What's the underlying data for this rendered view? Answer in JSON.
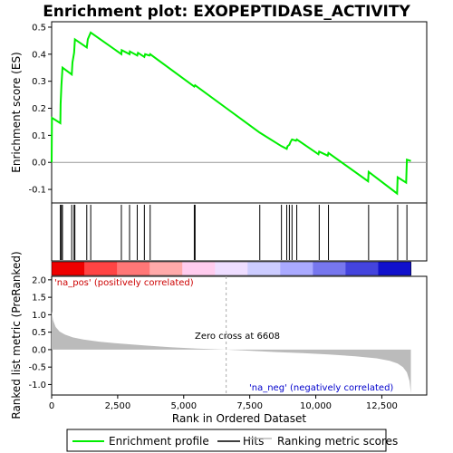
{
  "chart_data": {
    "type": "line",
    "title": "Enrichment plot: EXOPEPTIDASE_ACTIVITY",
    "xlabel": "Rank in Ordered Dataset",
    "ylabel_top": "Enrichment score (ES)",
    "ylabel_bottom": "Ranked list metric (PreRanked)",
    "x_range": [
      0,
      14200
    ],
    "x_ticks": [
      0,
      2500,
      5000,
      7500,
      10000,
      12500
    ],
    "x_tick_labels": [
      "0",
      "2,500",
      "5,000",
      "7,500",
      "10,000",
      "12,500"
    ],
    "es_ylim": [
      -0.15,
      0.52
    ],
    "es_ticks": [
      -0.1,
      0.0,
      0.1,
      0.2,
      0.3,
      0.4,
      0.5
    ],
    "es_tick_labels": [
      "-0.1",
      "0.0",
      "0.1",
      "0.2",
      "0.3",
      "0.4",
      "0.5"
    ],
    "metric_ylim": [
      -1.3,
      2.1
    ],
    "metric_ticks": [
      -1.0,
      -0.5,
      0.0,
      0.5,
      1.0,
      1.5,
      2.0
    ],
    "metric_tick_labels": [
      "-1.0",
      "-0.5",
      "0.0",
      "0.5",
      "1.0",
      "1.5",
      "2.0"
    ],
    "series": [
      {
        "name": "Enrichment profile",
        "color": "#00ee00",
        "points": [
          [
            0,
            0.0
          ],
          [
            10,
            0.165
          ],
          [
            330,
            0.145
          ],
          [
            340,
            0.215
          ],
          [
            370,
            0.285
          ],
          [
            410,
            0.35
          ],
          [
            760,
            0.325
          ],
          [
            790,
            0.37
          ],
          [
            850,
            0.405
          ],
          [
            880,
            0.455
          ],
          [
            1330,
            0.425
          ],
          [
            1370,
            0.455
          ],
          [
            1480,
            0.48
          ],
          [
            2640,
            0.4
          ],
          [
            2650,
            0.415
          ],
          [
            2950,
            0.4
          ],
          [
            2960,
            0.41
          ],
          [
            3240,
            0.395
          ],
          [
            3270,
            0.405
          ],
          [
            3510,
            0.39
          ],
          [
            3540,
            0.4
          ],
          [
            3700,
            0.395
          ],
          [
            3730,
            0.4
          ],
          [
            5400,
            0.28
          ],
          [
            5430,
            0.285
          ],
          [
            7880,
            0.11
          ],
          [
            8700,
            0.06
          ],
          [
            8900,
            0.05
          ],
          [
            8930,
            0.06
          ],
          [
            9000,
            0.065
          ],
          [
            9040,
            0.075
          ],
          [
            9100,
            0.085
          ],
          [
            9250,
            0.08
          ],
          [
            9280,
            0.085
          ],
          [
            10100,
            0.03
          ],
          [
            10130,
            0.04
          ],
          [
            10450,
            0.025
          ],
          [
            10480,
            0.035
          ],
          [
            11980,
            -0.07
          ],
          [
            12000,
            -0.035
          ],
          [
            13080,
            -0.115
          ],
          [
            13100,
            -0.055
          ],
          [
            13420,
            -0.075
          ],
          [
            13450,
            0.01
          ],
          [
            13600,
            0.005
          ]
        ]
      }
    ],
    "hits": [
      330,
      370,
      410,
      760,
      850,
      880,
      1330,
      1480,
      2640,
      2950,
      3240,
      3510,
      3730,
      5400,
      5430,
      7880,
      8700,
      8900,
      9000,
      9100,
      9280,
      10130,
      10480,
      12000,
      13100,
      13450
    ],
    "metric_points": [
      [
        0,
        1.1
      ],
      [
        50,
        0.85
      ],
      [
        150,
        0.65
      ],
      [
        300,
        0.52
      ],
      [
        500,
        0.43
      ],
      [
        800,
        0.35
      ],
      [
        1200,
        0.29
      ],
      [
        1800,
        0.23
      ],
      [
        2500,
        0.18
      ],
      [
        3500,
        0.12
      ],
      [
        4500,
        0.07
      ],
      [
        5500,
        0.03
      ],
      [
        6608,
        0.0
      ],
      [
        7500,
        -0.03
      ],
      [
        8500,
        -0.07
      ],
      [
        9500,
        -0.1
      ],
      [
        10500,
        -0.14
      ],
      [
        11500,
        -0.19
      ],
      [
        12300,
        -0.25
      ],
      [
        12800,
        -0.32
      ],
      [
        13100,
        -0.4
      ],
      [
        13300,
        -0.5
      ],
      [
        13450,
        -0.65
      ],
      [
        13550,
        -0.9
      ],
      [
        13600,
        -1.25
      ]
    ],
    "zero_cross_rank": 6608,
    "zero_cross_label": "Zero cross at 6608",
    "pos_label": "'na_pos' (positively correlated)",
    "neg_label": "'na_neg' (negatively correlated)",
    "pos_label_color": "#cc0000",
    "neg_label_color": "#0000cc",
    "heatmap_colors": [
      "#ee0000",
      "#ff4444",
      "#ff7777",
      "#ffaaaa",
      "#ffccee",
      "#eeddff",
      "#ccccff",
      "#aaaaff",
      "#7777ee",
      "#4444dd",
      "#1111cc"
    ],
    "legend": [
      {
        "label": "Enrichment profile",
        "color": "#00ee00"
      },
      {
        "label": "Hits",
        "color": "#000000"
      },
      {
        "label": "Ranking metric scores",
        "color": "#bbbbbb"
      }
    ]
  }
}
